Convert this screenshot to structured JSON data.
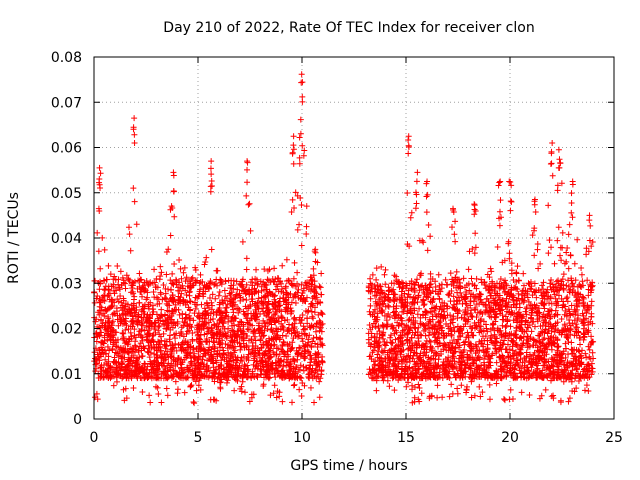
{
  "chart_data": {
    "type": "scatter",
    "title": "Day 210 of 2022, Rate Of TEC Index for receiver clon",
    "xlabel": "GPS time / hours",
    "ylabel": "ROTI / TECUs",
    "xlim": [
      0,
      25
    ],
    "ylim": [
      0,
      0.08
    ],
    "x_ticks": [
      "0",
      "5",
      "10",
      "15",
      "20",
      "25"
    ],
    "y_ticks": [
      "0",
      "0.01",
      "0.02",
      "0.03",
      "0.04",
      "0.05",
      "0.06",
      "0.07",
      "0.08"
    ],
    "grid": true,
    "marker": "plus",
    "color": "#ff0000",
    "data_segments": [
      {
        "x_start": 0.0,
        "x_end": 11.0
      },
      {
        "x_start": 13.2,
        "x_end": 24.0
      }
    ],
    "peaks": [
      {
        "x": 0.3,
        "y": 0.0555
      },
      {
        "x": 1.9,
        "y": 0.0665
      },
      {
        "x": 3.8,
        "y": 0.0545
      },
      {
        "x": 5.6,
        "y": 0.057
      },
      {
        "x": 7.4,
        "y": 0.057
      },
      {
        "x": 9.6,
        "y": 0.0625
      },
      {
        "x": 10.0,
        "y": 0.0762
      },
      {
        "x": 10.6,
        "y": 0.0375
      },
      {
        "x": 15.1,
        "y": 0.0625
      },
      {
        "x": 15.5,
        "y": 0.0545
      },
      {
        "x": 16.0,
        "y": 0.0525
      },
      {
        "x": 17.3,
        "y": 0.0465
      },
      {
        "x": 18.3,
        "y": 0.0475
      },
      {
        "x": 19.5,
        "y": 0.0525
      },
      {
        "x": 20.0,
        "y": 0.0525
      },
      {
        "x": 21.2,
        "y": 0.0485
      },
      {
        "x": 22.0,
        "y": 0.061
      },
      {
        "x": 22.4,
        "y": 0.0595
      },
      {
        "x": 23.0,
        "y": 0.0525
      },
      {
        "x": 23.8,
        "y": 0.045
      }
    ],
    "typical_range": [
      0.005,
      0.035
    ],
    "min_value": 0.0035
  }
}
